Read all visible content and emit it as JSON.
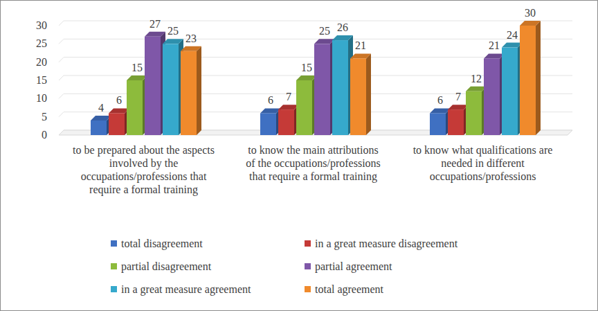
{
  "chart_data": {
    "type": "bar",
    "categories": [
      "to be prepared about the aspects involved by the occupations/professions that require a formal training",
      "to know the main attributions of the occupations/professions that require a formal training",
      "to know what qualifications are needed in different occupations/professions"
    ],
    "series": [
      {
        "name": "total disagreement",
        "color": "#3f70c2",
        "values": [
          4,
          6,
          6
        ]
      },
      {
        "name": "in a great measure disagreement",
        "color": "#c53a37",
        "values": [
          6,
          7,
          7
        ]
      },
      {
        "name": "partial disagreement",
        "color": "#8dbb3c",
        "values": [
          15,
          15,
          12
        ]
      },
      {
        "name": "partial agreement",
        "color": "#7f57a8",
        "values": [
          27,
          25,
          21
        ]
      },
      {
        "name": "in a great measure agreement",
        "color": "#36a9cc",
        "values": [
          25,
          26,
          24
        ]
      },
      {
        "name": "total agreement",
        "color": "#f08a2c",
        "values": [
          23,
          21,
          30
        ]
      }
    ],
    "ylim": [
      0,
      30
    ],
    "yticks": [
      0,
      5,
      10,
      15,
      20,
      25,
      30
    ],
    "grid": true,
    "data_labels": true,
    "legend": "bottom"
  }
}
